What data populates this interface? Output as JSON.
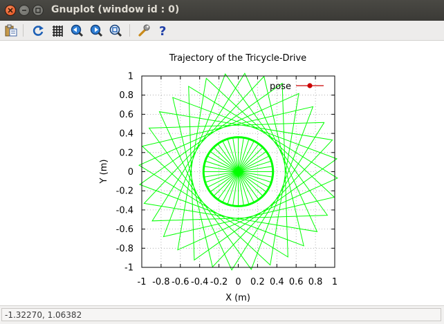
{
  "window": {
    "title": "Gnuplot (window id : 0)"
  },
  "toolbar": {
    "buttons": [
      {
        "name": "copy-clipboard",
        "icon": "clipboard-icon"
      },
      {
        "name": "replot",
        "icon": "refresh-icon"
      },
      {
        "name": "toggle-grid",
        "icon": "grid-icon"
      },
      {
        "name": "previous-zoom",
        "icon": "zoom-previous-icon"
      },
      {
        "name": "next-zoom",
        "icon": "zoom-next-icon"
      },
      {
        "name": "autoscale",
        "icon": "zoom-fit-icon"
      },
      {
        "name": "settings",
        "icon": "wrench-icon"
      },
      {
        "name": "help",
        "icon": "help-icon"
      }
    ]
  },
  "status": {
    "text": "-1.32270,  1.06382"
  },
  "chart_data": {
    "type": "line",
    "title": "Trajectory of the Tricycle-Drive",
    "xlabel": "X (m)",
    "ylabel": "Y (m)",
    "xlim": [
      -1,
      1
    ],
    "ylim": [
      -1,
      1
    ],
    "xticks": [
      "-1",
      "-0.8",
      "-0.6",
      "-0.4",
      "-0.2",
      "0",
      "0.2",
      "0.4",
      "0.6",
      "0.8",
      "1"
    ],
    "yticks": [
      "-1",
      "-0.8",
      "-0.6",
      "-0.4",
      "-0.2",
      "0",
      "0.2",
      "0.4",
      "0.6",
      "0.8",
      "1"
    ],
    "grid": true,
    "legend_position": "top-right",
    "series": [
      {
        "name": "pose",
        "color": "#00ff00",
        "legend_color": "#cc0000",
        "circle_radius": 0.36,
        "star_outer_radius": 1.03,
        "star_points": 32,
        "star_step_deg": 123.75,
        "spoke_count": 40
      }
    ]
  },
  "colors": {
    "plot_line": "#00ff00",
    "legend_sample": "#cc0000",
    "titlebar": "#3f3e3a",
    "close_button": "#e95420"
  }
}
